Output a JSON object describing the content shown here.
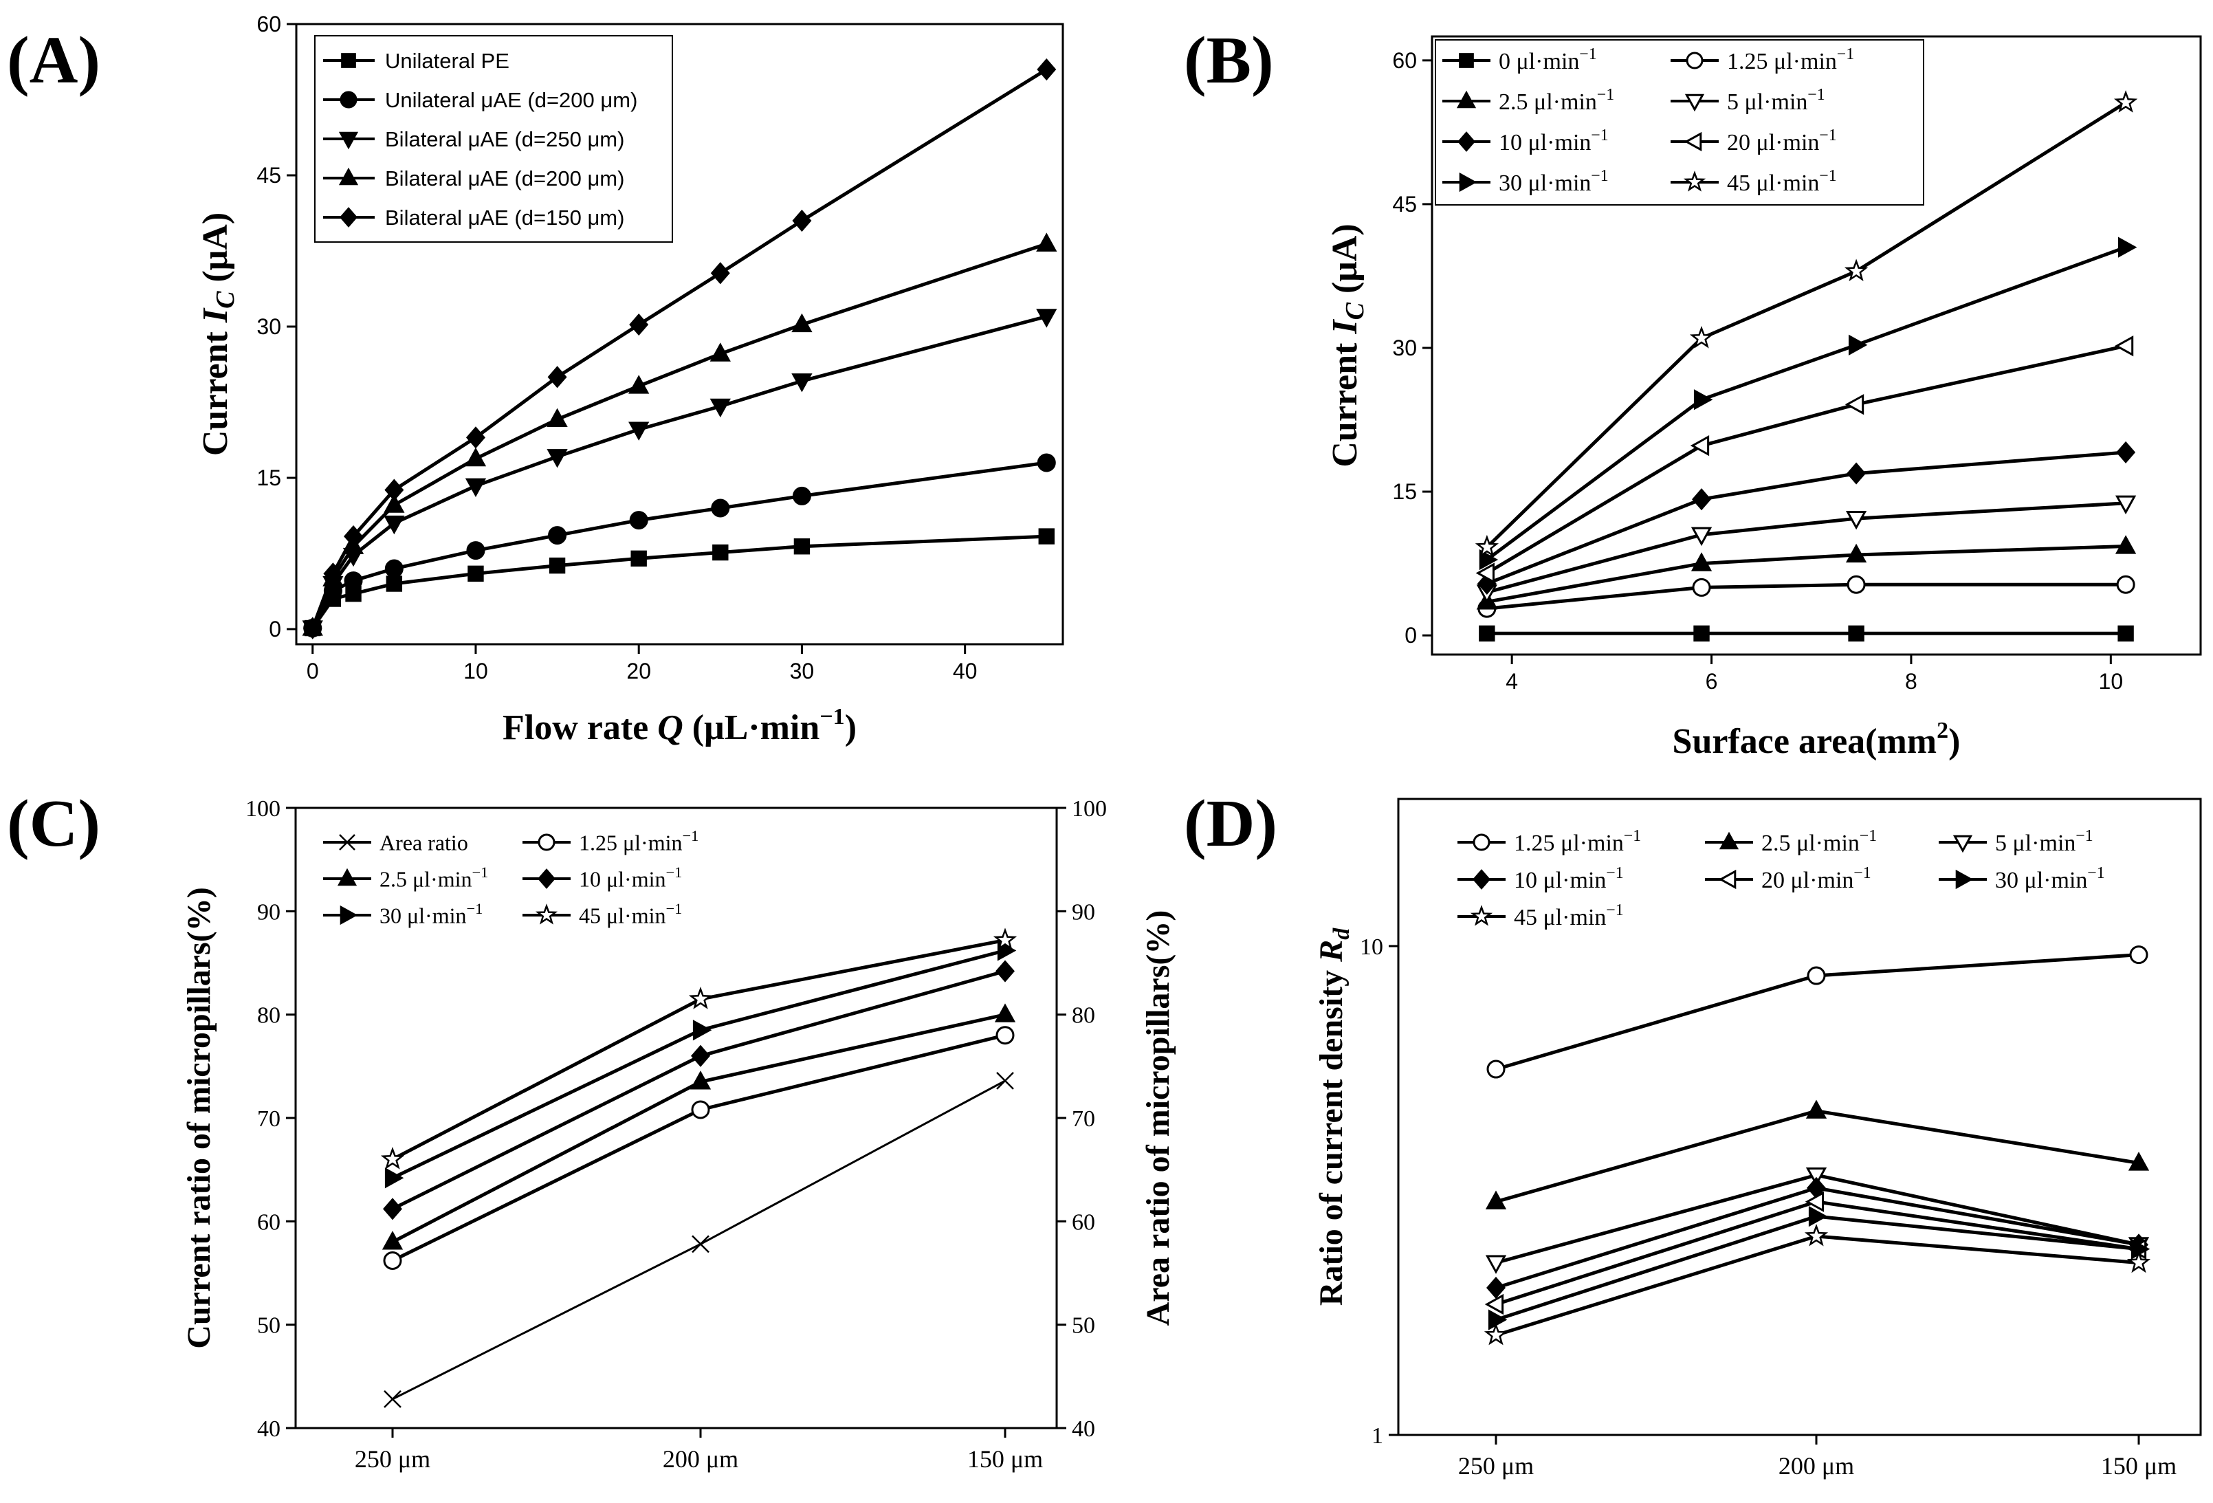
{
  "chart_data": [
    {
      "type": "line",
      "panel": "(A)",
      "xlabel": "Flow rate",
      "xlabel_sym": "Q",
      "xlabel_unit": "(μL·min",
      "xlabel_sup": "−1",
      "ylabel": "Current",
      "ylabel_sym": "I",
      "ylabel_sub": "C",
      "ylabel_unit": "(μA)",
      "xlim": [
        -1,
        46
      ],
      "ylim": [
        -1.5,
        60
      ],
      "xticks": [
        0,
        10,
        20,
        30,
        40
      ],
      "yticks": [
        0,
        15,
        30,
        45,
        60
      ],
      "legend_position": "top-left",
      "series": [
        {
          "name": "Unilateral PE",
          "marker": "square",
          "x": [
            0,
            1.25,
            2.5,
            5,
            10,
            15,
            20,
            25,
            30,
            45
          ],
          "y": [
            0.1,
            3.0,
            3.5,
            4.5,
            5.5,
            6.3,
            7.0,
            7.6,
            8.2,
            9.2
          ]
        },
        {
          "name": "Unilateral μAE (d=200 μm)",
          "marker": "circle",
          "x": [
            0,
            1.25,
            2.5,
            5,
            10,
            15,
            20,
            25,
            30,
            45
          ],
          "y": [
            0.1,
            3.8,
            4.8,
            6.0,
            7.8,
            9.3,
            10.8,
            12.0,
            13.2,
            16.5
          ]
        },
        {
          "name": "Bilateral μAE (d=250 μm)",
          "marker": "triangle-down",
          "x": [
            0,
            1.25,
            2.5,
            5,
            10,
            15,
            20,
            25,
            30,
            45
          ],
          "y": [
            0.1,
            4.5,
            7.3,
            10.5,
            14.2,
            17.1,
            19.8,
            22.1,
            24.6,
            31.0
          ]
        },
        {
          "name": "Bilateral μAE (d=200 μm)",
          "marker": "triangle-up",
          "x": [
            0,
            1.25,
            2.5,
            5,
            10,
            15,
            20,
            25,
            30,
            45
          ],
          "y": [
            0.1,
            5.0,
            8.2,
            12.3,
            16.9,
            20.8,
            24.1,
            27.3,
            30.2,
            38.2
          ]
        },
        {
          "name": "Bilateral μAE (d=150 μm)",
          "marker": "diamond",
          "x": [
            0,
            1.25,
            2.5,
            5,
            10,
            15,
            20,
            25,
            30,
            45
          ],
          "y": [
            0.1,
            5.5,
            9.2,
            13.8,
            19.0,
            25.0,
            30.2,
            35.3,
            40.5,
            55.5
          ]
        }
      ]
    },
    {
      "type": "line",
      "panel": "(B)",
      "xlabel": "Surface area(mm",
      "xlabel_sup": "2",
      "xlabel_tail": ")",
      "ylabel": "Current",
      "ylabel_sym": "I",
      "ylabel_sub": "C",
      "ylabel_unit": "(μA)",
      "xlim": [
        3.2,
        10.9
      ],
      "ylim": [
        -2,
        62.5
      ],
      "xticks": [
        4,
        6,
        8,
        10
      ],
      "yticks": [
        0,
        15,
        30,
        45,
        60
      ],
      "legend_position": "top-left",
      "series": [
        {
          "name": "0 μl·min",
          "marker": "square",
          "fill": "filled",
          "x": [
            3.75,
            5.9,
            7.45,
            10.15
          ],
          "y": [
            0.2,
            0.2,
            0.2,
            0.2
          ]
        },
        {
          "name": "1.25 μl·min",
          "marker": "circle",
          "fill": "open",
          "x": [
            3.75,
            5.9,
            7.45,
            10.15
          ],
          "y": [
            2.8,
            5.0,
            5.3,
            5.3
          ]
        },
        {
          "name": "2.5 μl·min",
          "marker": "triangle-up",
          "fill": "filled",
          "x": [
            3.75,
            5.9,
            7.45,
            10.15
          ],
          "y": [
            3.5,
            7.5,
            8.4,
            9.3
          ]
        },
        {
          "name": "5 μl·min",
          "marker": "triangle-down",
          "fill": "open",
          "x": [
            3.75,
            5.9,
            7.45,
            10.15
          ],
          "y": [
            4.5,
            10.5,
            12.2,
            13.8
          ]
        },
        {
          "name": "10 μl·min",
          "marker": "diamond",
          "fill": "filled",
          "x": [
            3.75,
            5.9,
            7.45,
            10.15
          ],
          "y": [
            5.4,
            14.2,
            16.9,
            19.1
          ]
        },
        {
          "name": "20 μl·min",
          "marker": "triangle-left",
          "fill": "open",
          "x": [
            3.75,
            5.9,
            7.45,
            10.15
          ],
          "y": [
            6.5,
            19.8,
            24.1,
            30.2
          ]
        },
        {
          "name": "30 μl·min",
          "marker": "triangle-right",
          "fill": "filled",
          "x": [
            3.75,
            5.9,
            7.45,
            10.15
          ],
          "y": [
            7.9,
            24.6,
            30.3,
            40.5
          ]
        },
        {
          "name": "45 μl·min",
          "marker": "star",
          "fill": "open",
          "x": [
            3.75,
            5.9,
            7.45,
            10.15
          ],
          "y": [
            9.2,
            31.0,
            38.0,
            55.6
          ]
        }
      ],
      "unit_sup": "−1"
    },
    {
      "type": "line",
      "panel": "(C)",
      "categories": [
        "250 μm",
        "200 μm",
        "150 μm"
      ],
      "ylabel": "Current ratio of micropillars(%)",
      "ylabel_right": "Area ratio of micropillars(%)",
      "ylim": [
        40,
        100
      ],
      "yticks": [
        40,
        50,
        60,
        70,
        80,
        90,
        100
      ],
      "legend_position": "top-left",
      "unit_sup": "−1",
      "series": [
        {
          "name": "Area ratio",
          "marker": "x",
          "fill": "open",
          "values": [
            42.8,
            57.8,
            73.6
          ]
        },
        {
          "name": "1.25 μl·min",
          "marker": "circle",
          "fill": "open",
          "values": [
            56.2,
            70.8,
            78.0
          ]
        },
        {
          "name": "2.5 μl·min",
          "marker": "triangle-up",
          "fill": "filled",
          "values": [
            58.0,
            73.5,
            80.0
          ]
        },
        {
          "name": "10 μl·min",
          "marker": "diamond",
          "fill": "filled",
          "values": [
            61.2,
            76.0,
            84.2
          ]
        },
        {
          "name": "30 μl·min",
          "marker": "triangle-right",
          "fill": "filled",
          "values": [
            64.2,
            78.5,
            86.2
          ]
        },
        {
          "name": "45 μl·min",
          "marker": "star",
          "fill": "open",
          "values": [
            66.0,
            81.5,
            87.2
          ]
        }
      ]
    },
    {
      "type": "line",
      "panel": "(D)",
      "categories": [
        "250 μm",
        "200 μm",
        "150 μm"
      ],
      "ylabel": "Ratio of current density",
      "ylabel_sym": "R",
      "ylabel_sub": "d",
      "yscale": "log",
      "ylim": [
        1,
        20
      ],
      "yticks": [
        1,
        10
      ],
      "legend_position": "top-left",
      "unit_sup": "−1",
      "series": [
        {
          "name": "1.25 μl·min",
          "marker": "circle",
          "fill": "open",
          "values": [
            5.6,
            8.7,
            9.6
          ]
        },
        {
          "name": "2.5 μl·min",
          "marker": "triangle-up",
          "fill": "filled",
          "values": [
            3.0,
            4.6,
            3.6
          ]
        },
        {
          "name": "5 μl·min",
          "marker": "triangle-down",
          "fill": "open",
          "values": [
            2.25,
            3.4,
            2.45
          ]
        },
        {
          "name": "10 μl·min",
          "marker": "diamond",
          "fill": "filled",
          "values": [
            2.0,
            3.2,
            2.45
          ]
        },
        {
          "name": "20 μl·min",
          "marker": "triangle-left",
          "fill": "open",
          "values": [
            1.85,
            3.0,
            2.4
          ]
        },
        {
          "name": "30 μl·min",
          "marker": "triangle-right",
          "fill": "filled",
          "values": [
            1.72,
            2.8,
            2.4
          ]
        },
        {
          "name": "45 μl·min",
          "marker": "star",
          "fill": "open",
          "values": [
            1.6,
            2.55,
            2.25
          ]
        }
      ]
    }
  ]
}
